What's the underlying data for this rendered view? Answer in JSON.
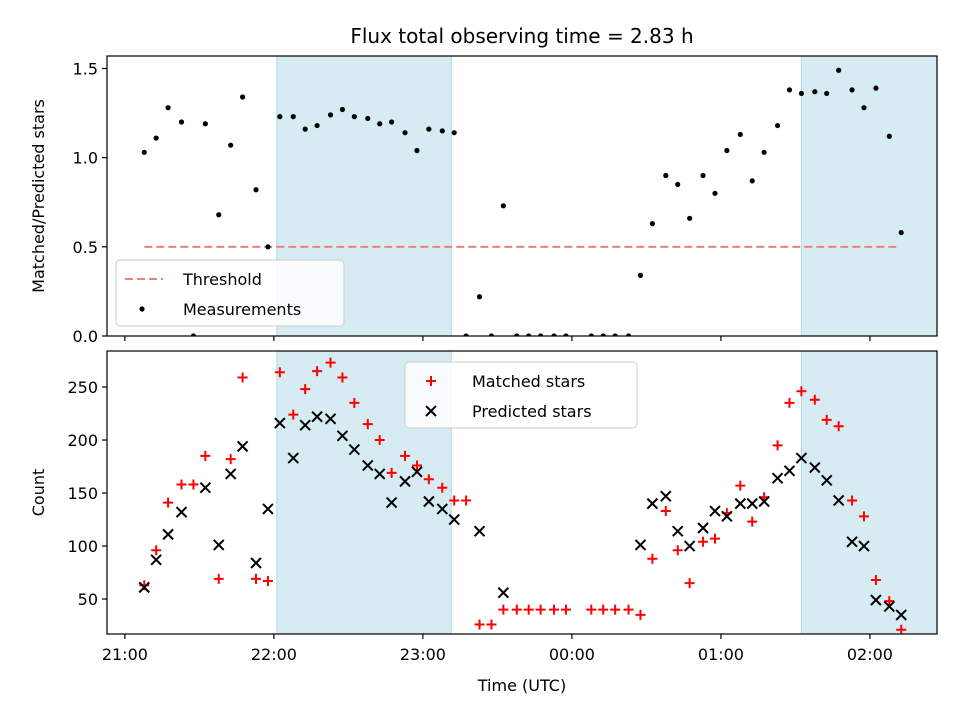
{
  "chart_data": {
    "type": "scatter",
    "title": "Flux total observing time = 2.83 h",
    "xlabel": "Time (UTC)",
    "x_tick_labels": [
      "21:00",
      "22:00",
      "23:00",
      "00:00",
      "01:00",
      "02:00"
    ],
    "x_tick_hours": [
      0,
      1,
      2,
      3,
      4,
      5
    ],
    "x_range_hours": [
      -0.12,
      5.45
    ],
    "shaded_intervals_hours": [
      [
        1.02,
        2.19
      ],
      [
        4.54,
        6.2
      ]
    ],
    "panels": [
      {
        "ylabel": "Matched/Predicted stars",
        "ylim": [
          0,
          1.57
        ],
        "y_ticks": [
          0.0,
          0.5,
          1.0,
          1.5
        ],
        "y_tick_labels": [
          "0.0",
          "0.5",
          "1.0",
          "1.5"
        ],
        "legend_position": "lower-left",
        "threshold": {
          "name": "Threshold",
          "value": 0.5,
          "x_range_hours": [
            0.13,
            5.2
          ],
          "color": "#f08080"
        },
        "series": [
          {
            "name": "Measurements",
            "color": "#000000",
            "points": [
              [
                0.13,
                1.03
              ],
              [
                0.21,
                1.11
              ],
              [
                0.29,
                1.28
              ],
              [
                0.38,
                1.2
              ],
              [
                0.46,
                0.0
              ],
              [
                0.54,
                1.19
              ],
              [
                0.63,
                0.68
              ],
              [
                0.71,
                1.07
              ],
              [
                0.79,
                1.34
              ],
              [
                0.88,
                0.82
              ],
              [
                0.96,
                0.5
              ],
              [
                1.04,
                1.23
              ],
              [
                1.13,
                1.23
              ],
              [
                1.21,
                1.16
              ],
              [
                1.29,
                1.18
              ],
              [
                1.38,
                1.24
              ],
              [
                1.46,
                1.27
              ],
              [
                1.54,
                1.23
              ],
              [
                1.63,
                1.22
              ],
              [
                1.71,
                1.19
              ],
              [
                1.79,
                1.2
              ],
              [
                1.88,
                1.14
              ],
              [
                1.96,
                1.04
              ],
              [
                2.04,
                1.16
              ],
              [
                2.13,
                1.15
              ],
              [
                2.21,
                1.14
              ],
              [
                2.29,
                0.0
              ],
              [
                2.38,
                0.22
              ],
              [
                2.46,
                0.0
              ],
              [
                2.54,
                0.73
              ],
              [
                2.63,
                0.0
              ],
              [
                2.71,
                0.0
              ],
              [
                2.79,
                0.0
              ],
              [
                2.88,
                0.0
              ],
              [
                2.96,
                0.0
              ],
              [
                3.13,
                0.0
              ],
              [
                3.21,
                0.0
              ],
              [
                3.29,
                0.0
              ],
              [
                3.38,
                0.0
              ],
              [
                3.46,
                0.34
              ],
              [
                3.54,
                0.63
              ],
              [
                3.63,
                0.9
              ],
              [
                3.71,
                0.85
              ],
              [
                3.79,
                0.66
              ],
              [
                3.88,
                0.9
              ],
              [
                3.96,
                0.8
              ],
              [
                4.04,
                1.04
              ],
              [
                4.13,
                1.13
              ],
              [
                4.21,
                0.87
              ],
              [
                4.29,
                1.03
              ],
              [
                4.38,
                1.18
              ],
              [
                4.46,
                1.38
              ],
              [
                4.54,
                1.36
              ],
              [
                4.63,
                1.37
              ],
              [
                4.71,
                1.36
              ],
              [
                4.79,
                1.49
              ],
              [
                4.88,
                1.38
              ],
              [
                4.96,
                1.28
              ],
              [
                5.04,
                1.39
              ],
              [
                5.13,
                1.12
              ],
              [
                5.21,
                0.58
              ]
            ]
          }
        ]
      },
      {
        "ylabel": "Count",
        "ylim": [
          17,
          284
        ],
        "y_ticks": [
          50,
          100,
          150,
          200,
          250
        ],
        "y_tick_labels": [
          "50",
          "100",
          "150",
          "200",
          "250"
        ],
        "legend_position": "upper-center",
        "series": [
          {
            "name": "Matched stars",
            "marker": "plus",
            "color": "#ff0000",
            "points": [
              [
                0.13,
                63
              ],
              [
                0.21,
                96
              ],
              [
                0.29,
                141
              ],
              [
                0.38,
                158
              ],
              [
                0.46,
                158
              ],
              [
                0.54,
                185
              ],
              [
                0.63,
                69
              ],
              [
                0.71,
                182
              ],
              [
                0.79,
                259
              ],
              [
                0.88,
                69
              ],
              [
                0.96,
                67
              ],
              [
                1.04,
                264
              ],
              [
                1.13,
                224
              ],
              [
                1.21,
                248
              ],
              [
                1.29,
                265
              ],
              [
                1.38,
                273
              ],
              [
                1.46,
                259
              ],
              [
                1.54,
                235
              ],
              [
                1.63,
                215
              ],
              [
                1.71,
                200
              ],
              [
                1.79,
                169
              ],
              [
                1.88,
                185
              ],
              [
                1.96,
                176
              ],
              [
                2.04,
                163
              ],
              [
                2.13,
                155
              ],
              [
                2.21,
                143
              ],
              [
                2.29,
                143
              ],
              [
                2.38,
                26
              ],
              [
                2.46,
                26
              ],
              [
                2.54,
                40
              ],
              [
                2.63,
                40
              ],
              [
                2.71,
                40
              ],
              [
                2.79,
                40
              ],
              [
                2.88,
                40
              ],
              [
                2.96,
                40
              ],
              [
                3.13,
                40
              ],
              [
                3.21,
                40
              ],
              [
                3.29,
                40
              ],
              [
                3.38,
                40
              ],
              [
                3.46,
                35
              ],
              [
                3.54,
                88
              ],
              [
                3.63,
                133
              ],
              [
                3.71,
                96
              ],
              [
                3.79,
                65
              ],
              [
                3.88,
                104
              ],
              [
                3.96,
                107
              ],
              [
                4.04,
                131
              ],
              [
                4.13,
                157
              ],
              [
                4.21,
                123
              ],
              [
                4.29,
                146
              ],
              [
                4.38,
                195
              ],
              [
                4.46,
                235
              ],
              [
                4.54,
                246
              ],
              [
                4.63,
                238
              ],
              [
                4.71,
                219
              ],
              [
                4.79,
                213
              ],
              [
                4.88,
                143
              ],
              [
                4.96,
                128
              ],
              [
                5.04,
                68
              ],
              [
                5.13,
                48
              ],
              [
                5.21,
                21
              ]
            ]
          },
          {
            "name": "Predicted stars",
            "marker": "x",
            "color": "#000000",
            "points": [
              [
                0.13,
                61
              ],
              [
                0.21,
                87
              ],
              [
                0.29,
                111
              ],
              [
                0.38,
                132
              ],
              [
                0.54,
                155
              ],
              [
                0.63,
                101
              ],
              [
                0.71,
                168
              ],
              [
                0.79,
                194
              ],
              [
                0.88,
                84
              ],
              [
                0.96,
                135
              ],
              [
                1.04,
                216
              ],
              [
                1.13,
                183
              ],
              [
                1.21,
                214
              ],
              [
                1.29,
                222
              ],
              [
                1.38,
                220
              ],
              [
                1.46,
                204
              ],
              [
                1.54,
                191
              ],
              [
                1.63,
                176
              ],
              [
                1.71,
                168
              ],
              [
                1.79,
                141
              ],
              [
                1.88,
                161
              ],
              [
                1.96,
                170
              ],
              [
                2.04,
                142
              ],
              [
                2.13,
                135
              ],
              [
                2.21,
                125
              ],
              [
                2.38,
                114
              ],
              [
                2.54,
                56
              ],
              [
                3.46,
                101
              ],
              [
                3.54,
                140
              ],
              [
                3.63,
                147
              ],
              [
                3.71,
                114
              ],
              [
                3.79,
                100
              ],
              [
                3.88,
                117
              ],
              [
                3.96,
                133
              ],
              [
                4.04,
                128
              ],
              [
                4.13,
                140
              ],
              [
                4.21,
                140
              ],
              [
                4.29,
                142
              ],
              [
                4.38,
                164
              ],
              [
                4.46,
                171
              ],
              [
                4.54,
                183
              ],
              [
                4.63,
                174
              ],
              [
                4.71,
                162
              ],
              [
                4.79,
                143
              ],
              [
                4.88,
                104
              ],
              [
                4.96,
                100
              ],
              [
                5.04,
                49
              ],
              [
                5.13,
                43
              ],
              [
                5.21,
                35
              ]
            ]
          }
        ]
      }
    ]
  }
}
